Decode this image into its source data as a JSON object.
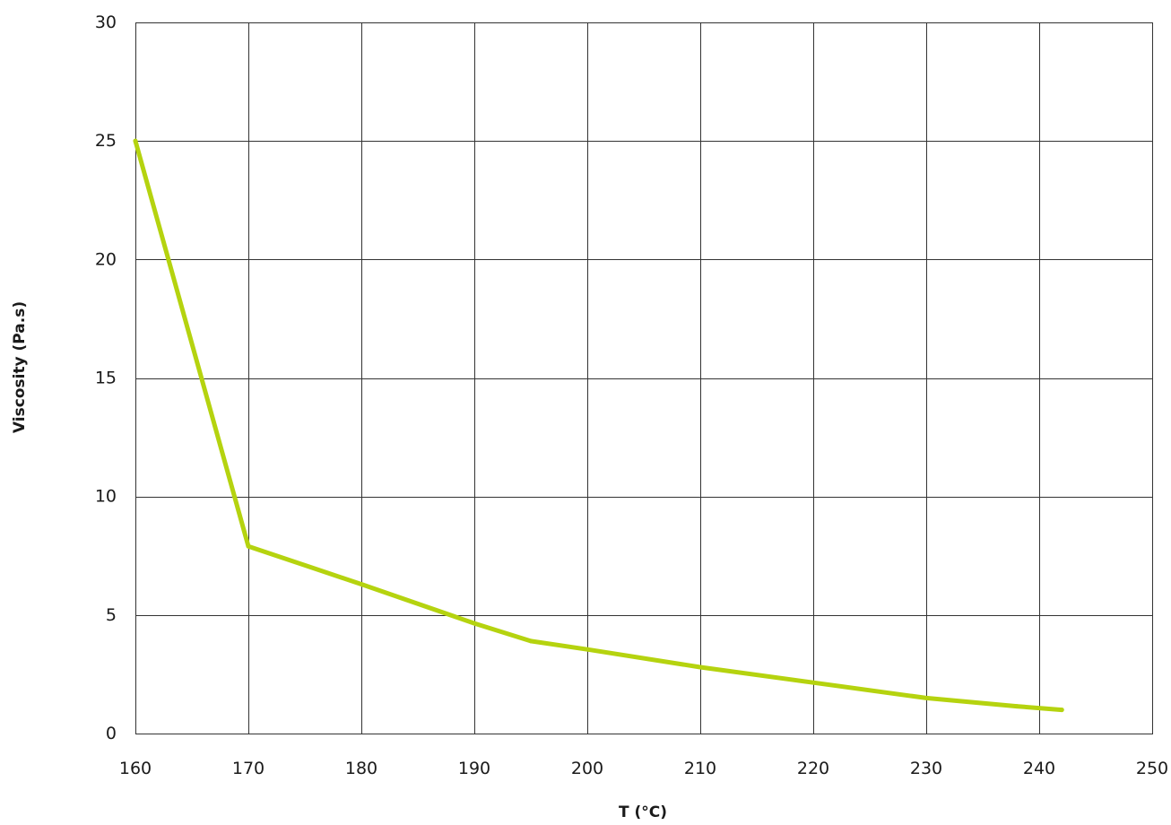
{
  "chart_data": {
    "type": "line",
    "title": "",
    "xlabel": "T (°C)",
    "ylabel": "Viscosity (Pa.s)",
    "xlim": [
      160,
      250
    ],
    "ylim": [
      0,
      30
    ],
    "x_ticks": [
      160,
      170,
      180,
      190,
      200,
      210,
      220,
      230,
      240,
      250
    ],
    "y_ticks": [
      0,
      5,
      10,
      15,
      20,
      25,
      30
    ],
    "grid": true,
    "legend": "none",
    "series": [
      {
        "color": "#b5d30f",
        "x": [
          160,
          170,
          180,
          190,
          195,
          200,
          210,
          220,
          230,
          238,
          242
        ],
        "y": [
          25,
          7.9,
          6.3,
          4.65,
          3.9,
          3.55,
          2.8,
          2.15,
          1.5,
          1.15,
          1.0
        ]
      }
    ]
  }
}
